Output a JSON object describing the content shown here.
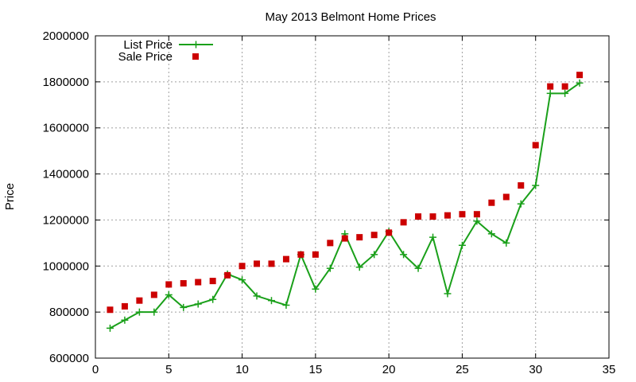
{
  "chart_data": {
    "type": "line",
    "title": "May 2013 Belmont Home Prices",
    "xlabel": "",
    "ylabel": "Price",
    "xlim": [
      0,
      35
    ],
    "ylim": [
      600000,
      2000000
    ],
    "x_ticks": [
      0,
      5,
      10,
      15,
      20,
      25,
      30,
      35
    ],
    "y_ticks": [
      600000,
      800000,
      1000000,
      1200000,
      1400000,
      1600000,
      1800000,
      2000000
    ],
    "grid": true,
    "legend_position": "top-left",
    "x": [
      1,
      2,
      3,
      4,
      5,
      6,
      7,
      8,
      9,
      10,
      11,
      12,
      13,
      14,
      15,
      16,
      17,
      18,
      19,
      20,
      21,
      22,
      23,
      24,
      25,
      26,
      27,
      28,
      29,
      30,
      31,
      32,
      33
    ],
    "series": [
      {
        "name": "List Price",
        "style": "lines+crosses",
        "color": "#1aa01a",
        "values": [
          730000,
          765000,
          800000,
          800000,
          875000,
          820000,
          835000,
          855000,
          965000,
          940000,
          870000,
          850000,
          830000,
          1050000,
          900000,
          990000,
          1140000,
          995000,
          1050000,
          1150000,
          1050000,
          990000,
          1125000,
          880000,
          1090000,
          1195000,
          1140000,
          1100000,
          1270000,
          1350000,
          1750000,
          1750000,
          1795000
        ]
      },
      {
        "name": "Sale Price",
        "style": "squares",
        "color": "#cc0000",
        "values": [
          810000,
          825000,
          850000,
          875000,
          920000,
          925000,
          930000,
          935000,
          960000,
          1000000,
          1010000,
          1010000,
          1030000,
          1050000,
          1050000,
          1100000,
          1120000,
          1125000,
          1135000,
          1145000,
          1190000,
          1215000,
          1215000,
          1220000,
          1225000,
          1225000,
          1275000,
          1300000,
          1350000,
          1525000,
          1780000,
          1780000,
          1830000
        ]
      }
    ]
  }
}
